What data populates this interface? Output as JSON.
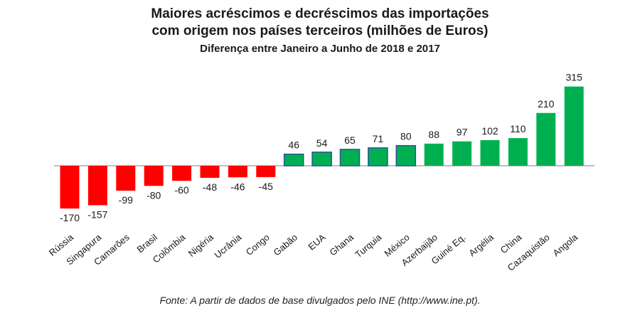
{
  "chart_data": {
    "type": "bar",
    "title_lines": [
      "Maiores acréscimos e decréscimos das importações",
      "com origem nos países terceiros (milhões de Euros)"
    ],
    "subtitle": "Diferença entre Janeiro a Junho de 2018 e 2017",
    "categories": [
      "Rússia",
      "Singapura",
      "Camarões",
      "Brasil",
      "Colômbia",
      "Nigéria",
      "Ucrânia",
      "Congo",
      "Gabão",
      "EUA",
      "Ghana",
      "Turquia",
      "México",
      "Azerbaijão",
      "Guiné Eq.",
      "Argélia",
      "China",
      "Cazaquistão",
      "Angola"
    ],
    "values": [
      -170,
      -157,
      -99,
      -80,
      -60,
      -48,
      -46,
      -45,
      46,
      54,
      65,
      71,
      80,
      88,
      97,
      102,
      110,
      210,
      315
    ],
    "data_labels": [
      "-170",
      "-157",
      "-99",
      "-80",
      "-60",
      "-48",
      "-46",
      "-45",
      "46",
      "54",
      "65",
      "71",
      "80",
      "88",
      "97",
      "102",
      "110",
      "210",
      "315"
    ],
    "outlined_categories": [
      "Gabão",
      "EUA",
      "Ghana",
      "Turquia",
      "México"
    ],
    "colors": {
      "negative": "#ff0000",
      "positive": "#00b050",
      "outline": "#2f5597",
      "axis": "#7f7f7f"
    },
    "axis_visible": false,
    "grid": false,
    "legend": "none"
  },
  "source": "Fonte: A partir de dados de base divulgados pelo INE (http://www.ine.pt)."
}
